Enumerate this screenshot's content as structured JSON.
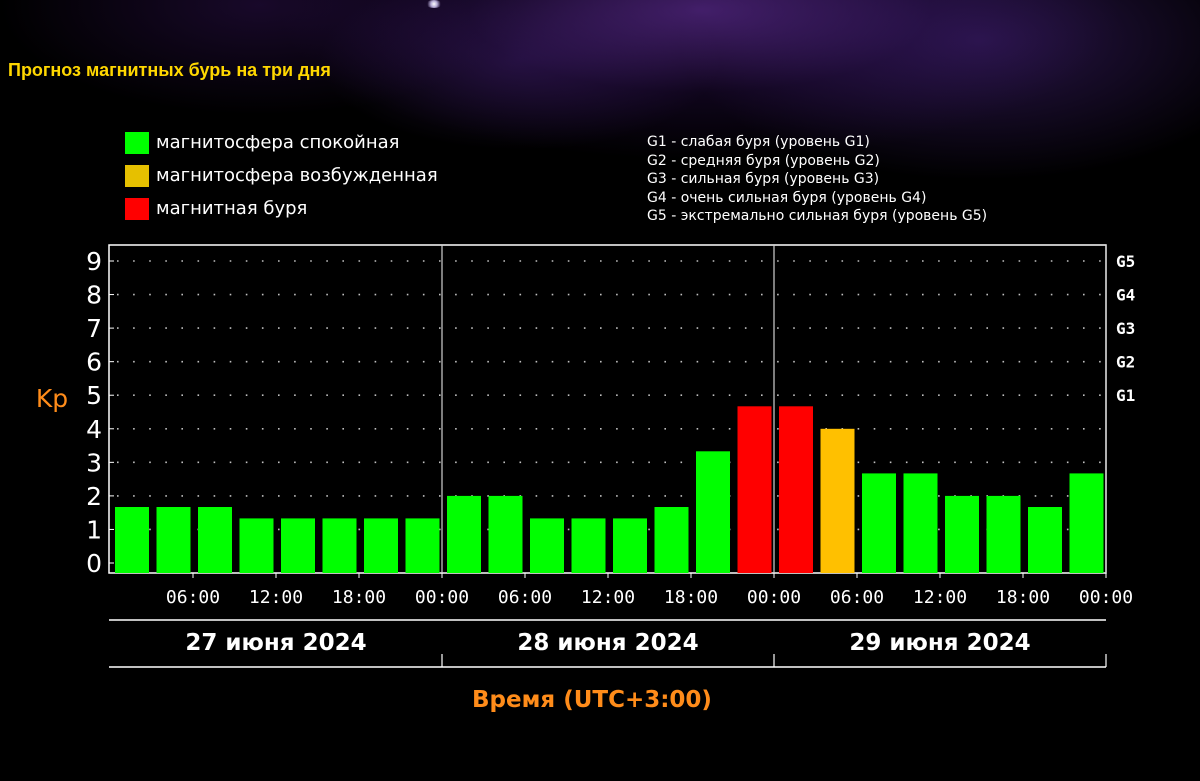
{
  "page": {
    "title": "Прогноз магнитных бурь на три дня"
  },
  "legend": {
    "items": [
      {
        "label": "магнитосфера спокойная",
        "color": "#00ff00"
      },
      {
        "label": "магнитосфера возбужденная",
        "color": "#e6c000"
      },
      {
        "label": "магнитная буря",
        "color": "#ff0000"
      }
    ]
  },
  "g_legend": [
    "G1 - слабая буря (уровень G1)",
    "G2 - средняя буря (уровень G2)",
    "G3 - сильная буря (уровень G3)",
    "G4 - очень сильная буря (уровень G4)",
    "G5 - экстремально сильная буря (уровень G5)"
  ],
  "colors": {
    "background": "#000000",
    "title": "#ffd700",
    "axis_label": "#ff8c1a",
    "quiet": "#00ff00",
    "active": "#ffc000",
    "storm": "#ff0000",
    "axis": "#ffffff"
  },
  "chart_data": {
    "type": "bar",
    "ylabel": "Kp",
    "xlabel": "Время (UTC+3:00)",
    "ylim": [
      0,
      9
    ],
    "yticks": [
      0,
      1,
      2,
      3,
      4,
      5,
      6,
      7,
      8,
      9
    ],
    "grid": true,
    "g_levels": [
      {
        "label": "G1",
        "kp": 5
      },
      {
        "label": "G2",
        "kp": 6
      },
      {
        "label": "G3",
        "kp": 7
      },
      {
        "label": "G4",
        "kp": 8
      },
      {
        "label": "G5",
        "kp": 9
      }
    ],
    "time_ticks": [
      "06:00",
      "12:00",
      "18:00",
      "00:00",
      "06:00",
      "12:00",
      "18:00",
      "00:00",
      "06:00",
      "12:00",
      "18:00",
      "00:00"
    ],
    "days": [
      "27 июня 2024",
      "28 июня 2024",
      "29 июня 2024"
    ],
    "values": [
      1.67,
      1.67,
      1.67,
      1.33,
      1.33,
      1.33,
      1.33,
      1.33,
      2,
      2,
      1.33,
      1.33,
      1.33,
      1.67,
      3.33,
      4.67,
      4.67,
      4,
      2.67,
      2.67,
      2,
      2,
      1.67,
      2.67
    ],
    "levels": [
      "quiet",
      "quiet",
      "quiet",
      "quiet",
      "quiet",
      "quiet",
      "quiet",
      "quiet",
      "quiet",
      "quiet",
      "quiet",
      "quiet",
      "quiet",
      "quiet",
      "quiet",
      "storm",
      "storm",
      "active",
      "quiet",
      "quiet",
      "quiet",
      "quiet",
      "quiet",
      "quiet"
    ]
  }
}
